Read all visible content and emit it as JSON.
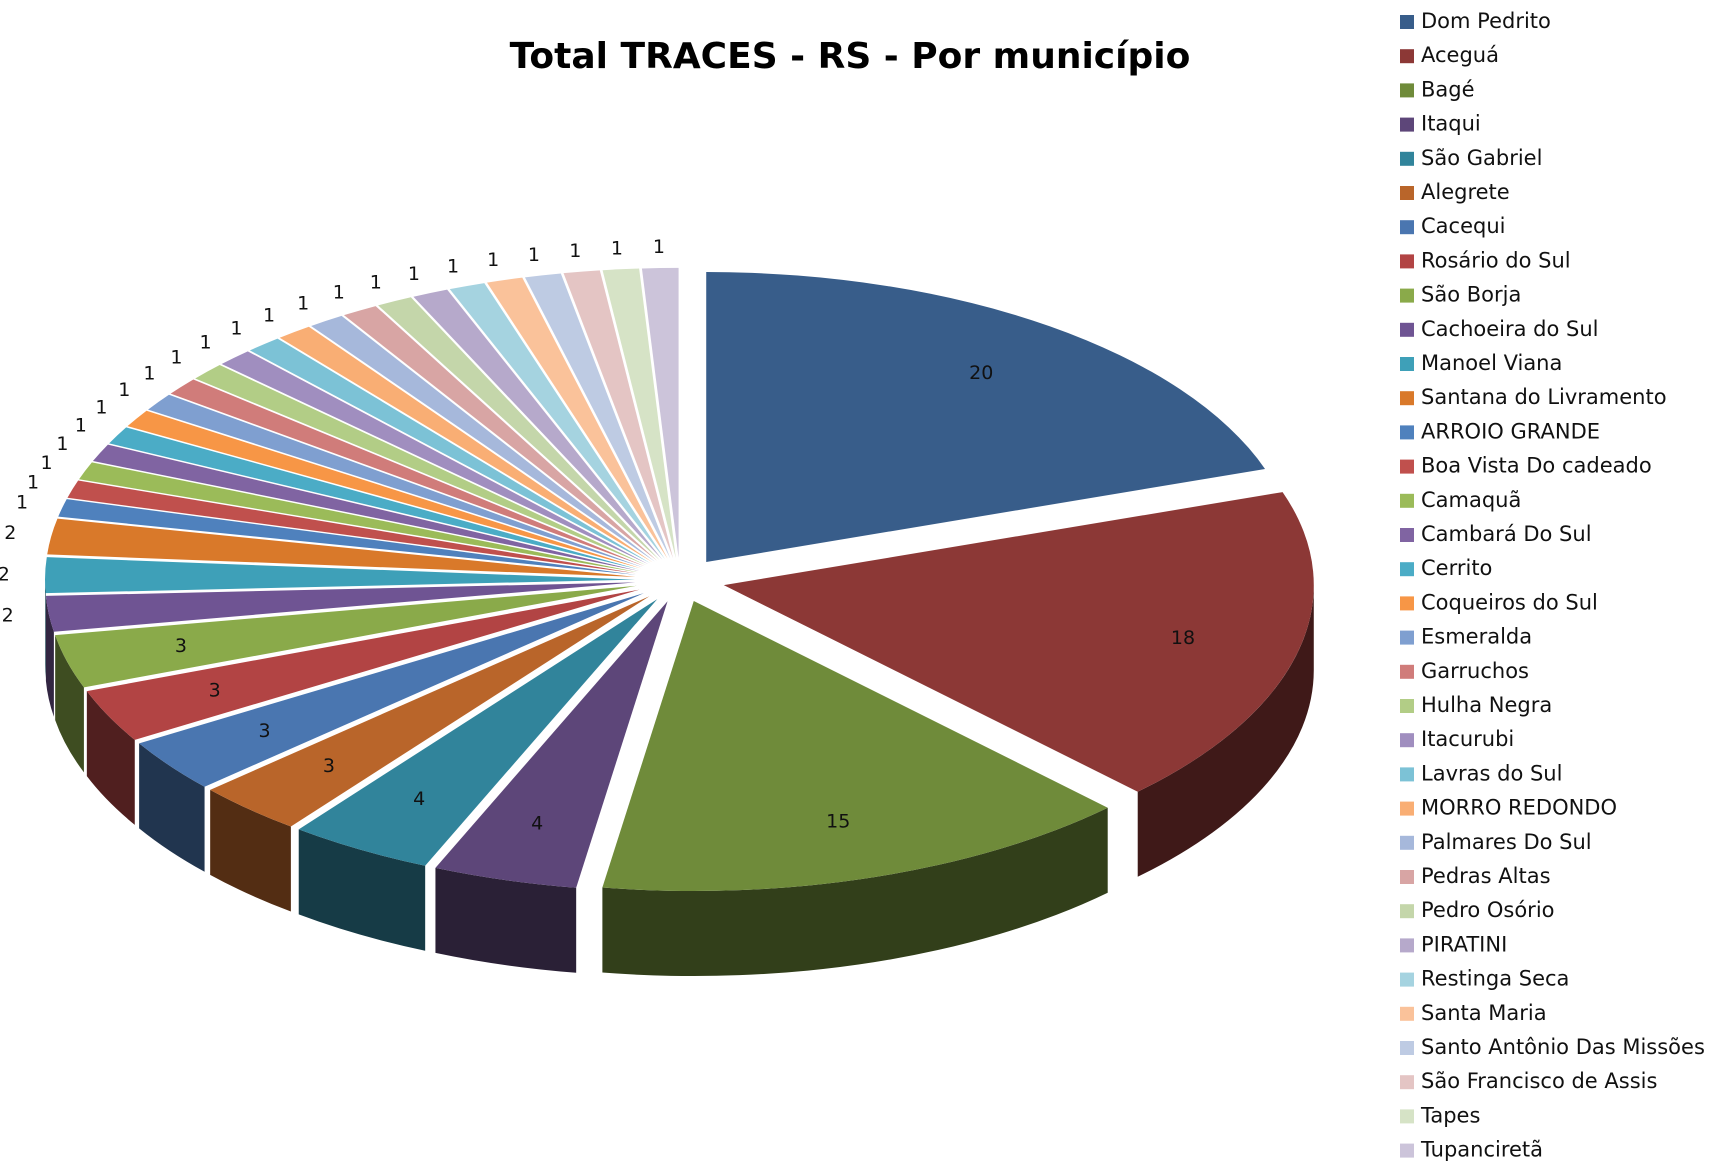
{
  "chart_data": {
    "type": "pie3d",
    "title": "Total TRACES - RS - Por município",
    "categories": [
      "Dom Pedrito",
      "Aceguá",
      "Bagé",
      "Itaqui",
      "São Gabriel",
      "Alegrete",
      "Cacequi",
      "Rosário do Sul",
      "São Borja",
      "Cachoeira do Sul",
      "Manoel Viana",
      "Santana do Livramento",
      "ARROIO GRANDE",
      "Boa Vista Do cadeado",
      "Camaquã",
      "Cambará Do Sul",
      "Cerrito",
      "Coqueiros do Sul",
      "Esmeralda",
      "Garruchos",
      "Hulha Negra",
      "Itacurubi",
      "Lavras do Sul",
      "MORRO REDONDO",
      "Palmares Do Sul",
      "Pedras Altas",
      "Pedro Osório",
      "PIRATINI",
      "Restinga Seca",
      "Santa Maria",
      "Santo Antônio Das Missões",
      "São Francisco de Assis",
      "Tapes",
      "Tupanciretã"
    ],
    "values": [
      20,
      18,
      15,
      4,
      4,
      3,
      3,
      3,
      3,
      2,
      2,
      2,
      1,
      1,
      1,
      1,
      1,
      1,
      1,
      1,
      1,
      1,
      1,
      1,
      1,
      1,
      1,
      1,
      1,
      1,
      1,
      1,
      1,
      1
    ],
    "colors": [
      "#385D8A",
      "#8C3836",
      "#6F8B3A",
      "#5D4679",
      "#31849B",
      "#B9652A",
      "#4A76B0",
      "#B24444",
      "#8AAA4A",
      "#6F5493",
      "#3EA0B8",
      "#D9792A",
      "#4F81BD",
      "#C0504D",
      "#9BBB59",
      "#8064A2",
      "#4BACC6",
      "#F79646",
      "#7F9FD0",
      "#D07C7A",
      "#B2CD86",
      "#A08EBF",
      "#7CC2D6",
      "#F9AE74",
      "#A6B8DB",
      "#D8A5A4",
      "#C4D6AA",
      "#B6A9CB",
      "#A5D3E0",
      "#FAC29A",
      "#BECBE3",
      "#E4C5C4",
      "#D6E3C6",
      "#CCC4DA"
    ],
    "legend": "right"
  }
}
